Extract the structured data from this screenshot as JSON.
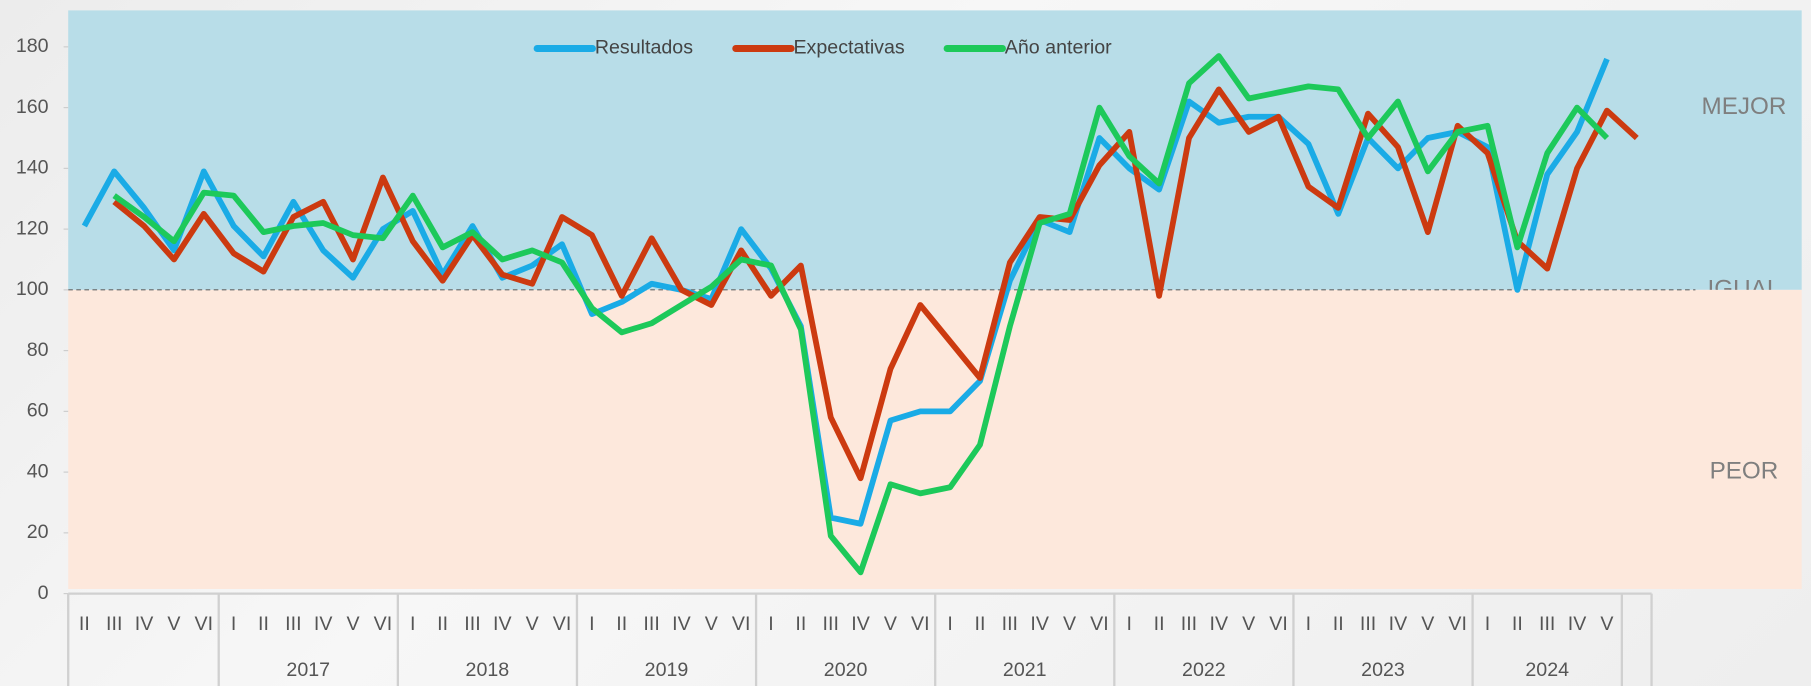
{
  "chart_data": {
    "type": "line",
    "categories": [
      "II",
      "III",
      "IV",
      "V",
      "VI",
      "I",
      "II",
      "III",
      "IV",
      "V",
      "VI",
      "I",
      "II",
      "III",
      "IV",
      "V",
      "VI",
      "I",
      "II",
      "III",
      "IV",
      "V",
      "VI",
      "I",
      "II",
      "III",
      "IV",
      "V",
      "VI",
      "I",
      "II",
      "III",
      "IV",
      "V",
      "VI",
      "I",
      "II",
      "III",
      "IV",
      "V",
      "VI",
      "I",
      "II",
      "III",
      "IV",
      "V",
      "VI",
      "I",
      "II",
      "III",
      "IV",
      "V",
      null
    ],
    "group_labels": [
      null,
      "2017",
      "2018",
      "2019",
      "2020",
      "2021",
      "2022",
      "2023",
      "2024"
    ],
    "series": [
      {
        "name": "Resultados",
        "color": "#1aabe6",
        "values": [
          121,
          139,
          127,
          113,
          139,
          121,
          111,
          129,
          113,
          104,
          120,
          126,
          105,
          121,
          104,
          108,
          115,
          92,
          96,
          102,
          100,
          97,
          120,
          107,
          88,
          25,
          23,
          57,
          60,
          60,
          70,
          103,
          123,
          119,
          150,
          140,
          133,
          162,
          155,
          157,
          157,
          148,
          125,
          150,
          140,
          150,
          152,
          147,
          100,
          138,
          152,
          176,
          null
        ]
      },
      {
        "name": "Expectativas",
        "color": "#cc3a10",
        "values": [
          null,
          129,
          121,
          110,
          125,
          112,
          106,
          124,
          129,
          110,
          137,
          116,
          103,
          118,
          105,
          102,
          124,
          118,
          98,
          117,
          100,
          95,
          113,
          98,
          108,
          58,
          38,
          74,
          95,
          83,
          71,
          109,
          124,
          123,
          141,
          152,
          98,
          150,
          166,
          152,
          157,
          134,
          127,
          158,
          147,
          119,
          154,
          145,
          116,
          107,
          140,
          159,
          150
        ]
      },
      {
        "name": "Año anterior",
        "color": "#1dc95a",
        "values": [
          null,
          131,
          124,
          116,
          132,
          131,
          119,
          121,
          122,
          118,
          117,
          131,
          114,
          119,
          110,
          113,
          109,
          94,
          86,
          89,
          95,
          101,
          110,
          108,
          87,
          19,
          7,
          36,
          33,
          35,
          49,
          88,
          122,
          125,
          160,
          144,
          135,
          168,
          177,
          163,
          165,
          167,
          166,
          150,
          162,
          139,
          152,
          154,
          114,
          145,
          160,
          150,
          null
        ]
      }
    ],
    "ylim": [
      0,
      192
    ],
    "yticks": [
      0,
      20,
      40,
      60,
      80,
      100,
      120,
      140,
      160,
      180
    ],
    "reference_line": 100,
    "bands": [
      {
        "label": "MEJOR",
        "from": 100,
        "to": 192,
        "color": "#b8dde8"
      },
      {
        "label": "IGUAL",
        "from": 100,
        "to": 100,
        "color": null
      },
      {
        "label": "PEOR",
        "from": 0,
        "to": 100,
        "color": "#fde8dc"
      }
    ],
    "legend": "top"
  }
}
